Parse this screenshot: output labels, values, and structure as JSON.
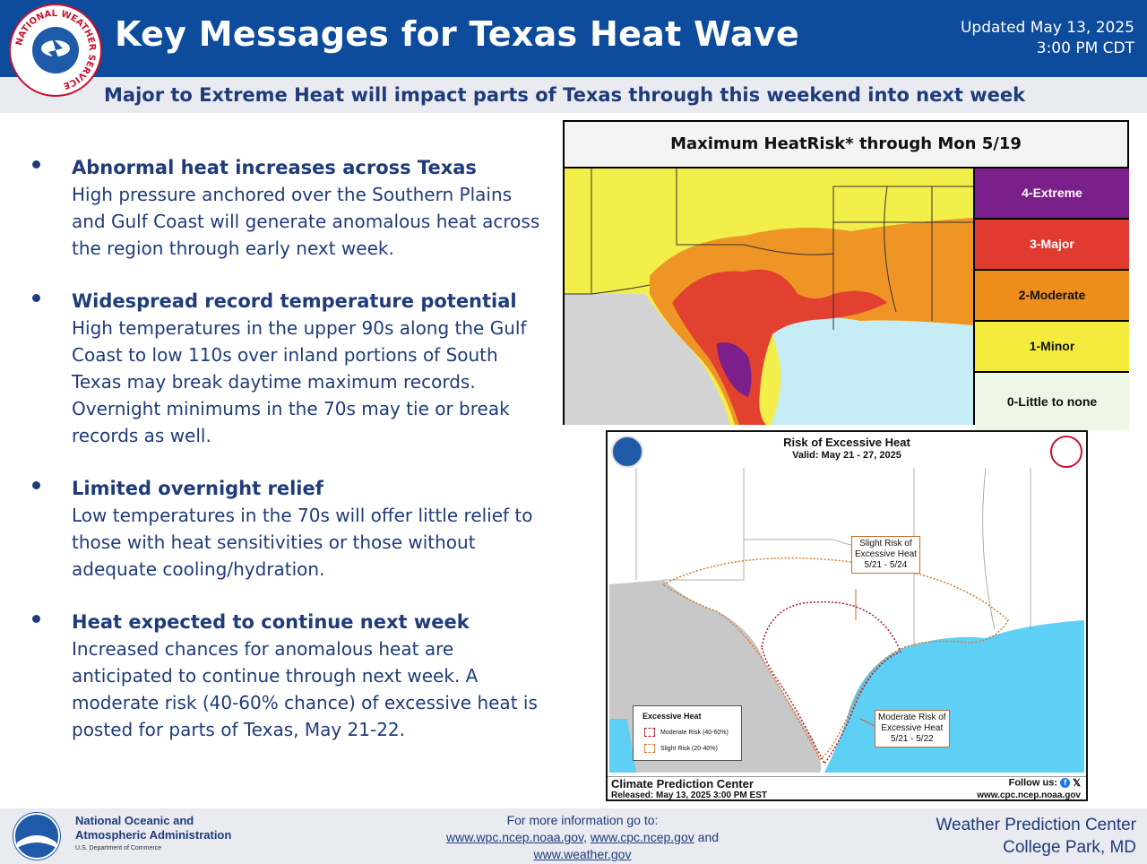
{
  "header": {
    "title": "Key Messages for Texas Heat Wave",
    "updated_line1": "Updated May 13, 2025",
    "updated_line2": "3:00 PM CDT",
    "subtitle": "Major to Extreme Heat will impact parts of Texas through this weekend into next week",
    "logo_icon": "nws-logo-icon",
    "logo_text": "NATIONAL WEATHER SERVICE"
  },
  "bullets": [
    {
      "title": "Abnormal heat increases across Texas",
      "text": "High pressure anchored over the Southern Plains and Gulf Coast will generate anomalous heat across the region through early next week."
    },
    {
      "title": "Widespread record temperature potential",
      "text": "High temperatures in the upper 90s along the Gulf Coast to low 110s over inland portions of South Texas may break daytime maximum records. Overnight minimums in the 70s may tie or break records as well."
    },
    {
      "title": "Limited overnight relief",
      "text": "Low temperatures in the 70s will offer little relief to those with heat sensitivities or those without adequate cooling/hydration."
    },
    {
      "title": "Heat expected to continue next week",
      "text": "Increased chances for anomalous heat are anticipated to continue through next week. A moderate risk (40-60% chance) of excessive heat is posted for parts of Texas, May 21-22."
    }
  ],
  "heatrisk": {
    "title": "Maximum HeatRisk* through Mon 5/19",
    "legend": [
      {
        "label": "4-Extreme",
        "color": "#7b1f8a",
        "text_color": "#ffffff"
      },
      {
        "label": "3-Major",
        "color": "#e03b2e",
        "text_color": "#ffffff"
      },
      {
        "label": "2-Moderate",
        "color": "#ec8d1c",
        "text_color": "#111111"
      },
      {
        "label": "1-Minor",
        "color": "#f4ec3c",
        "text_color": "#111111"
      },
      {
        "label": "0-Little to none",
        "color": "#eef6e6",
        "text_color": "#111111"
      }
    ]
  },
  "cpc": {
    "title": "Risk of Excessive Heat",
    "valid": "Valid: May 21 - 27, 2025",
    "slight_callout": [
      "Slight Risk of",
      "Excessive Heat",
      "5/21 - 5/24"
    ],
    "moderate_callout": [
      "Moderate Risk of",
      "Excessive Heat",
      "5/21 - 5/22"
    ],
    "legend_title": "Excessive Heat",
    "legend_moderate": "Moderate Risk (40-60%)",
    "legend_slight": "Slight Risk (20-40%)",
    "footer_name": "Climate Prediction Center",
    "footer_released": "Released: May 13, 2025 3:00 PM EST",
    "follow": "Follow us:",
    "url": "www.cpc.ncep.noaa.gov",
    "moderate_color": "#b0182a",
    "slight_color": "#d97a2a"
  },
  "footer": {
    "noaa_line1": "National Oceanic and",
    "noaa_line2": "Atmospheric Administration",
    "dept": "U.S. Department of Commerce",
    "more_info": "For more information go to:",
    "link1": "www.wpc.ncep.noaa.gov",
    "link2": "www.cpc.ncep.gov",
    "and": "and",
    "link3": "www.weather.gov",
    "wpc_line1": "Weather Prediction Center",
    "wpc_line2": "College Park, MD"
  }
}
